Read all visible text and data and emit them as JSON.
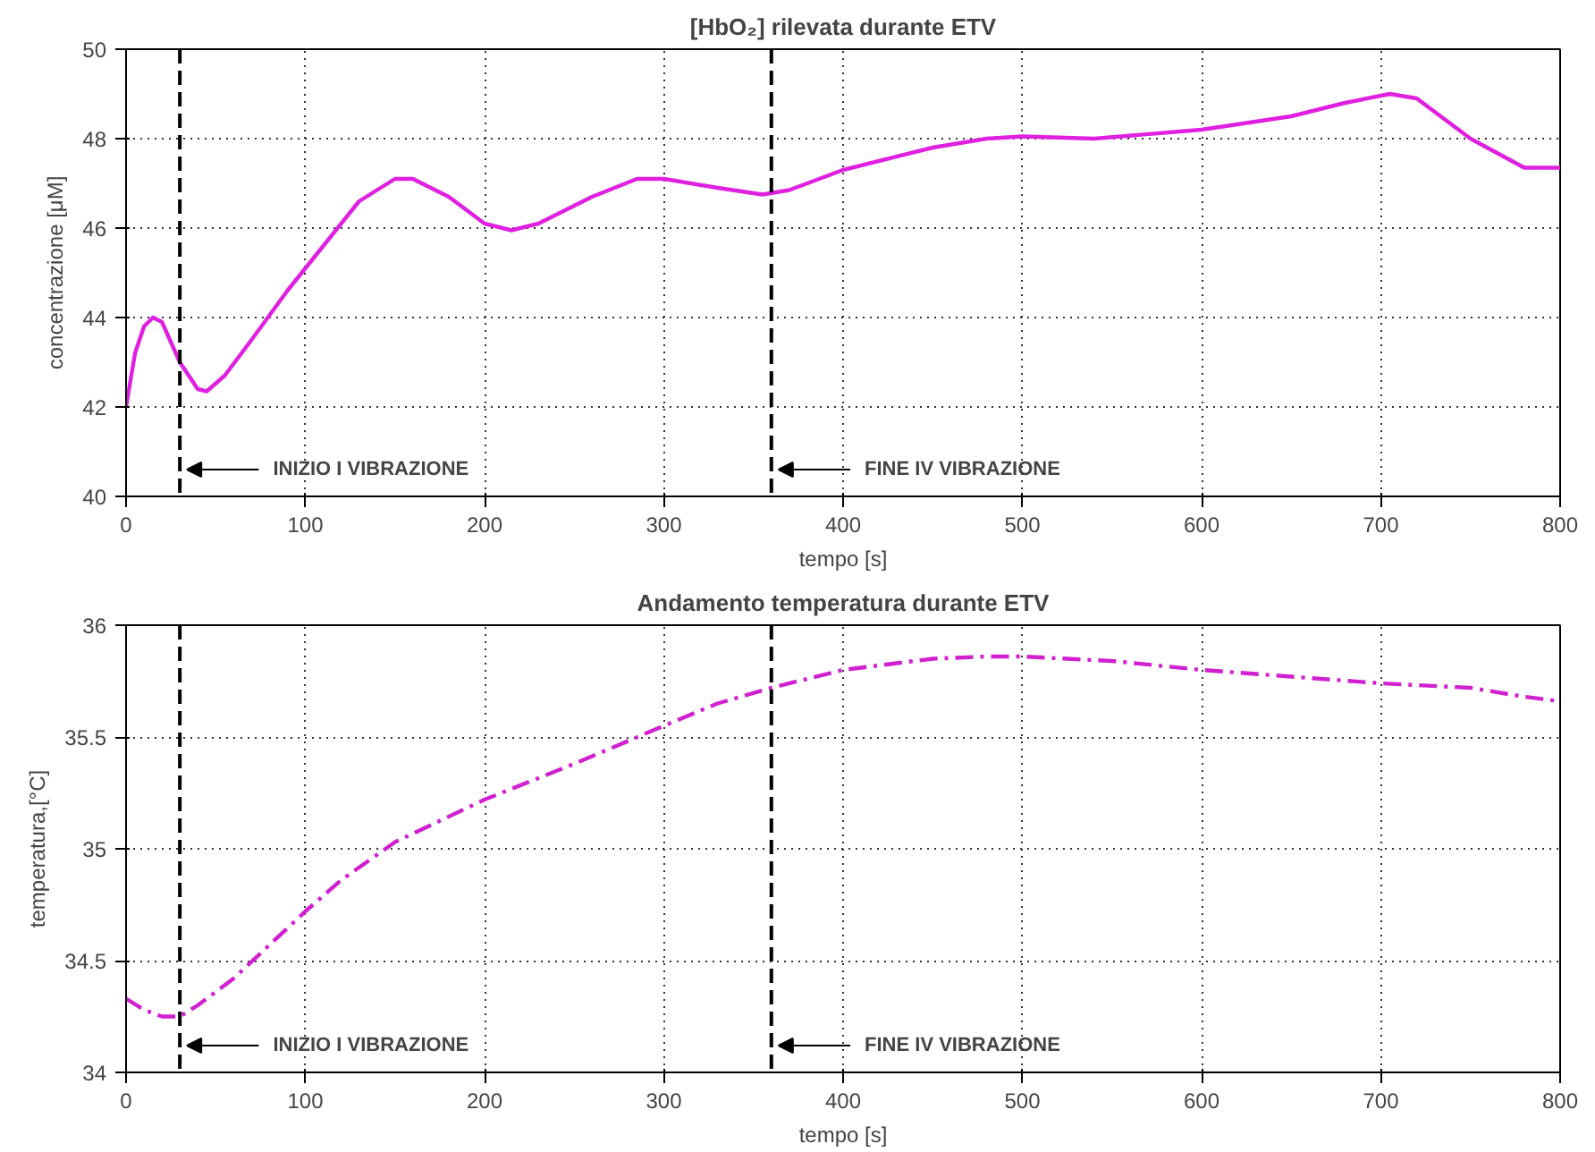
{
  "chart_data": [
    {
      "type": "line",
      "title": "[HbO₂] rilevata durante ETV",
      "xlabel": "tempo [s]",
      "ylabel": "concentrazione [μM]",
      "x": [
        0,
        5,
        10,
        15,
        20,
        30,
        40,
        45,
        55,
        70,
        90,
        110,
        130,
        150,
        160,
        180,
        200,
        215,
        230,
        260,
        285,
        300,
        330,
        355,
        370,
        400,
        450,
        480,
        500,
        540,
        600,
        650,
        680,
        705,
        720,
        750,
        780,
        800
      ],
      "series": [
        {
          "color": "#e020e0",
          "values": [
            42.0,
            43.2,
            43.8,
            44.0,
            43.9,
            43.0,
            42.4,
            42.35,
            42.7,
            43.5,
            44.6,
            45.6,
            46.6,
            47.1,
            47.1,
            46.7,
            46.1,
            45.95,
            46.1,
            46.7,
            47.1,
            47.1,
            46.9,
            46.75,
            46.85,
            47.3,
            47.8,
            48.0,
            48.05,
            48.0,
            48.2,
            48.5,
            48.8,
            49.0,
            48.9,
            48.0,
            47.35,
            47.35
          ]
        }
      ],
      "line_style": "solid",
      "xlim": [
        0,
        800
      ],
      "xticks": [
        0,
        100,
        200,
        300,
        400,
        500,
        600,
        700,
        800
      ],
      "ylim": [
        40,
        50
      ],
      "yticks": [
        40,
        42,
        44,
        46,
        48,
        50
      ],
      "grid": true,
      "ref_lines": [
        {
          "axis": "x",
          "value": 30,
          "label": "INIZIO I VIBRAZIONE",
          "color": "#000000",
          "line_style": "dashed"
        },
        {
          "axis": "x",
          "value": 360,
          "label": "FINE IV VIBRAZIONE",
          "color": "#000000",
          "line_style": "dashed"
        }
      ]
    },
    {
      "type": "line",
      "title": "Andamento temperatura durante ETV",
      "xlabel": "tempo [s]",
      "ylabel": "temperatura,[°C]",
      "x": [
        0,
        10,
        20,
        30,
        40,
        60,
        80,
        100,
        120,
        150,
        200,
        250,
        300,
        330,
        360,
        400,
        450,
        480,
        500,
        550,
        600,
        650,
        700,
        750,
        780,
        800
      ],
      "series": [
        {
          "color": "#d020d0",
          "values": [
            34.33,
            34.28,
            34.25,
            34.25,
            34.3,
            34.42,
            34.57,
            34.72,
            34.86,
            35.03,
            35.22,
            35.38,
            35.55,
            35.65,
            35.72,
            35.8,
            35.85,
            35.86,
            35.86,
            35.84,
            35.8,
            35.77,
            35.74,
            35.72,
            35.68,
            35.66
          ]
        }
      ],
      "line_style": "dashed",
      "xlim": [
        0,
        800
      ],
      "xticks": [
        0,
        100,
        200,
        300,
        400,
        500,
        600,
        700,
        800
      ],
      "ylim": [
        34,
        36
      ],
      "yticks": [
        34,
        34.5,
        35,
        35.5,
        36
      ],
      "grid": true,
      "ref_lines": [
        {
          "axis": "x",
          "value": 30,
          "label": "INIZIO I VIBRAZIONE",
          "color": "#000000",
          "line_style": "dashed"
        },
        {
          "axis": "x",
          "value": 360,
          "label": "FINE IV VIBRAZIONE",
          "color": "#000000",
          "line_style": "dashed"
        }
      ]
    }
  ]
}
